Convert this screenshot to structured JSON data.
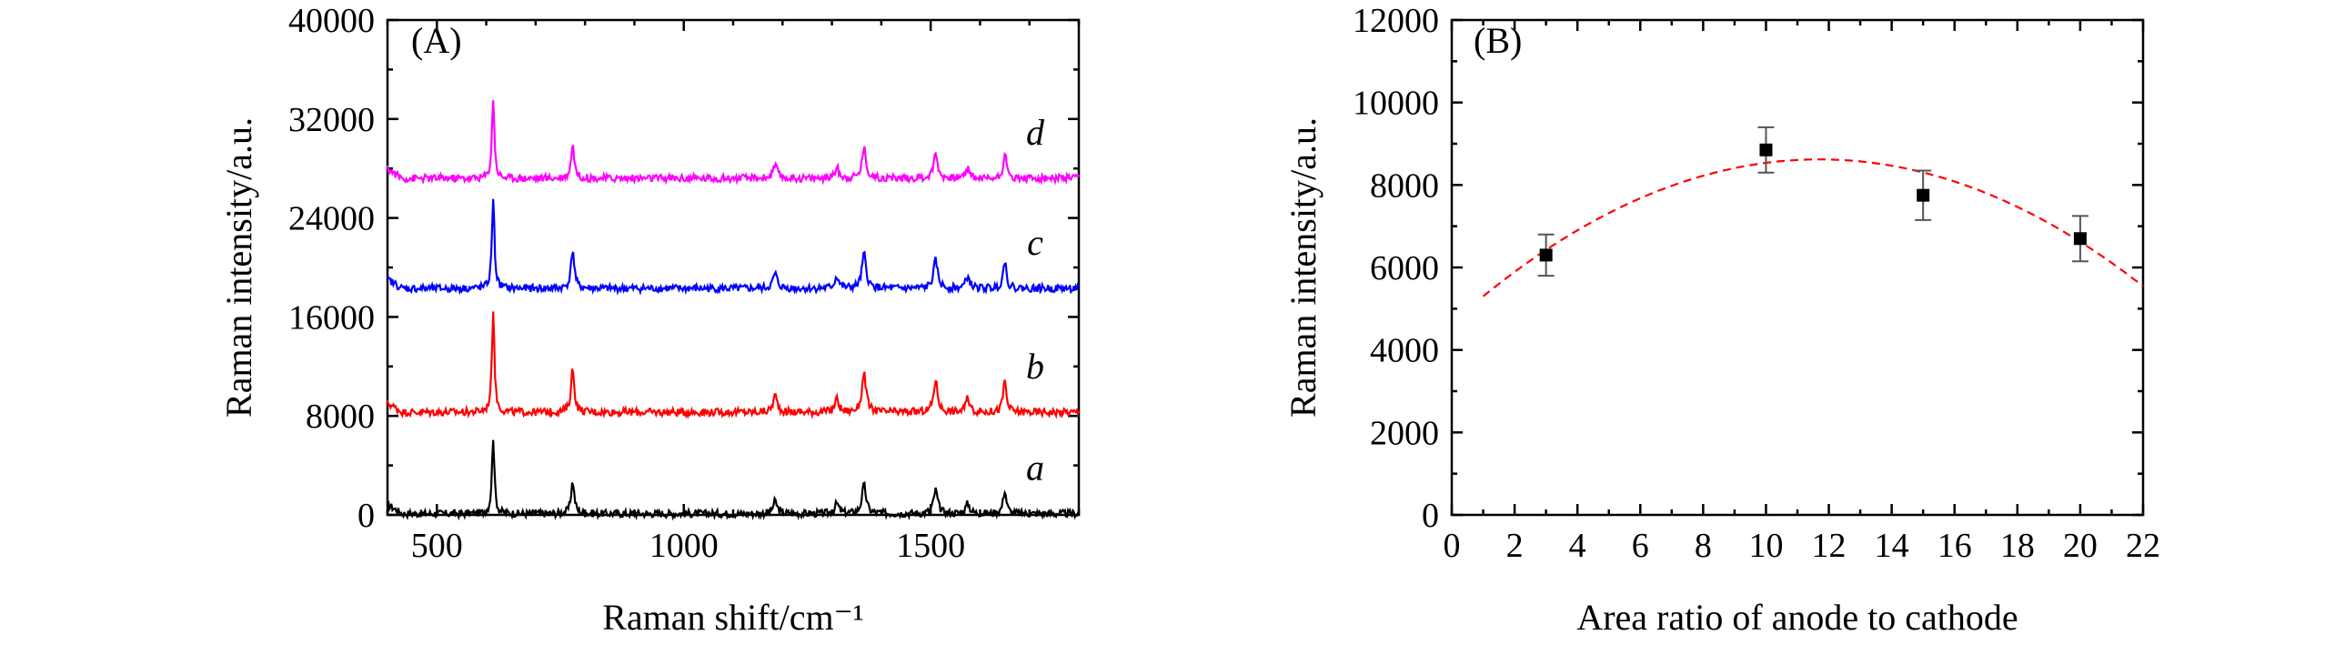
{
  "chart_data": [
    {
      "type": "line",
      "panel_label": "(A)",
      "xlabel": "Raman shift/cm⁻¹",
      "ylabel": "Raman intensity/a.u.",
      "xlim": [
        400,
        1800
      ],
      "ylim": [
        0,
        40000
      ],
      "xticks": [
        500,
        1000,
        1500
      ],
      "yticks": [
        0,
        8000,
        16000,
        24000,
        32000,
        40000
      ],
      "tick_labels_x": [
        "500",
        "1000",
        "1500"
      ],
      "tick_labels_y": [
        "0",
        "8000",
        "16000",
        "24000",
        "32000",
        "40000"
      ],
      "peaks": [
        {
          "pos": 614,
          "height": 6200,
          "width": 3
        },
        {
          "pos": 775,
          "height": 2600,
          "width": 4
        },
        {
          "pos": 1185,
          "height": 1000,
          "width": 5
        },
        {
          "pos": 1310,
          "height": 800,
          "width": 5
        },
        {
          "pos": 1365,
          "height": 2300,
          "width": 5
        },
        {
          "pos": 1510,
          "height": 1900,
          "width": 5
        },
        {
          "pos": 1575,
          "height": 800,
          "width": 5
        },
        {
          "pos": 1650,
          "height": 1900,
          "width": 4
        }
      ],
      "series": [
        {
          "name": "a",
          "offset": 100,
          "scale": 1.0,
          "color": "#000000"
        },
        {
          "name": "b",
          "offset": 8300,
          "scale": 1.35,
          "color": "#ff0000"
        },
        {
          "name": "c",
          "offset": 18300,
          "scale": 1.2,
          "color": "#0000ff"
        },
        {
          "name": "d",
          "offset": 27200,
          "scale": 1.05,
          "color": "#ff00ff"
        }
      ]
    },
    {
      "type": "scatter",
      "panel_label": "(B)",
      "xlabel": "Area ratio of anode to cathode",
      "ylabel": "Raman intensity/a.u.",
      "xlim": [
        0,
        22
      ],
      "ylim": [
        0,
        12000
      ],
      "xticks": [
        0,
        2,
        4,
        6,
        8,
        10,
        12,
        14,
        16,
        18,
        20,
        22
      ],
      "yticks": [
        0,
        2000,
        4000,
        6000,
        8000,
        10000,
        12000
      ],
      "tick_labels_x": [
        "0",
        "2",
        "4",
        "6",
        "8",
        "10",
        "12",
        "14",
        "16",
        "18",
        "20",
        "22"
      ],
      "tick_labels_y": [
        "0",
        "2000",
        "4000",
        "6000",
        "8000",
        "10000",
        "12000"
      ],
      "points": [
        {
          "x": 3,
          "y": 6300,
          "err": 500
        },
        {
          "x": 10,
          "y": 8850,
          "err": 550
        },
        {
          "x": 15,
          "y": 7750,
          "err": 600
        },
        {
          "x": 20,
          "y": 6700,
          "err": 550
        }
      ],
      "fit": {
        "type": "quadratic",
        "vertex_x": 11.7,
        "vertex_y": 8620,
        "a": -29,
        "x_range": [
          1,
          22
        ],
        "color": "#ff0000"
      }
    }
  ]
}
